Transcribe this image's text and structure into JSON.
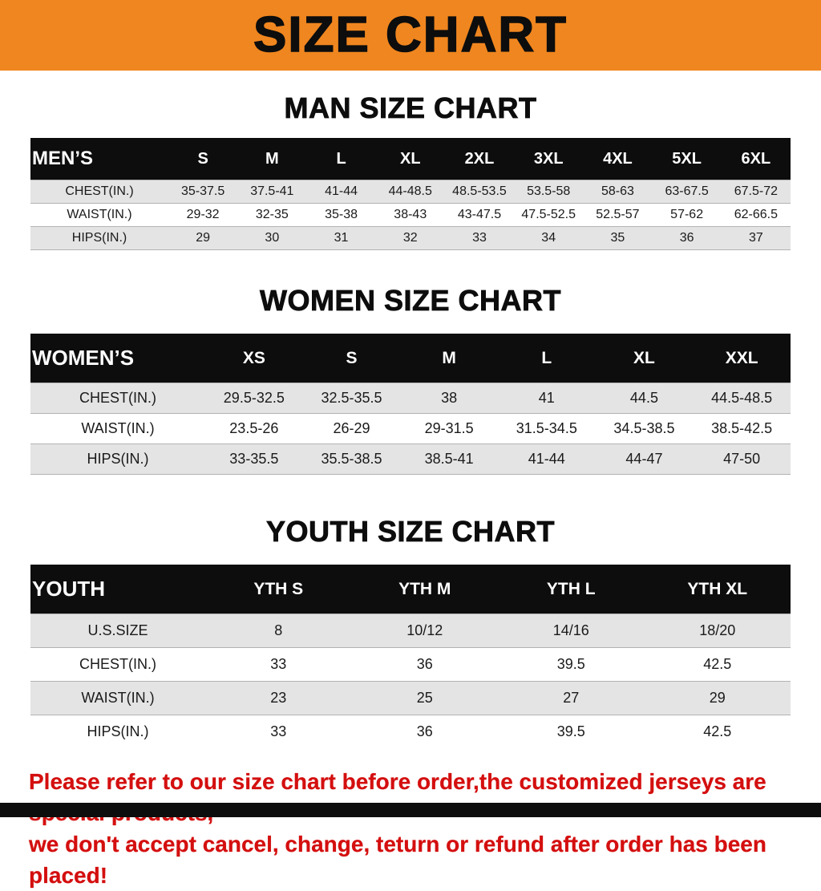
{
  "banner": {
    "title": "SIZE CHART",
    "bg_color": "#f0861f"
  },
  "colors": {
    "header_row_bg": "#0d0d0d",
    "stripe_row_bg": "#e4e4e4",
    "notice_text": "#d40f0f"
  },
  "sections": {
    "men": {
      "heading": "MAN SIZE CHART",
      "table": {
        "header": [
          "MEN’S",
          "S",
          "M",
          "L",
          "XL",
          "2XL",
          "3XL",
          "4XL",
          "5XL",
          "6XL"
        ],
        "rows": [
          [
            "CHEST(IN.)",
            "35-37.5",
            "37.5-41",
            "41-44",
            "44-48.5",
            "48.5-53.5",
            "53.5-58",
            "58-63",
            "63-67.5",
            "67.5-72"
          ],
          [
            "WAIST(IN.)",
            "29-32",
            "32-35",
            "35-38",
            "38-43",
            "43-47.5",
            "47.5-52.5",
            "52.5-57",
            "57-62",
            "62-66.5"
          ],
          [
            "HIPS(IN.)",
            "29",
            "30",
            "31",
            "32",
            "33",
            "34",
            "35",
            "36",
            "37"
          ]
        ]
      }
    },
    "women": {
      "heading": "WOMEN SIZE CHART",
      "table": {
        "header": [
          "WOMEN’S",
          "XS",
          "S",
          "M",
          "L",
          "XL",
          "XXL"
        ],
        "rows": [
          [
            "CHEST(IN.)",
            "29.5-32.5",
            "32.5-35.5",
            "38",
            "41",
            "44.5",
            "44.5-48.5"
          ],
          [
            "WAIST(IN.)",
            "23.5-26",
            "26-29",
            "29-31.5",
            "31.5-34.5",
            "34.5-38.5",
            "38.5-42.5"
          ],
          [
            "HIPS(IN.)",
            "33-35.5",
            "35.5-38.5",
            "38.5-41",
            "41-44",
            "44-47",
            "47-50"
          ]
        ]
      }
    },
    "youth": {
      "heading": "YOUTH SIZE CHART",
      "table": {
        "header": [
          "YOUTH",
          "YTH S",
          "YTH M",
          "YTH L",
          "YTH XL"
        ],
        "rows": [
          [
            "U.S.SIZE",
            "8",
            "10/12",
            "14/16",
            "18/20"
          ],
          [
            "CHEST(IN.)",
            "33",
            "36",
            "39.5",
            "42.5"
          ],
          [
            "WAIST(IN.)",
            "23",
            "25",
            "27",
            "29"
          ],
          [
            "HIPS(IN.)",
            "33",
            "36",
            "39.5",
            "42.5"
          ]
        ]
      }
    }
  },
  "notice": {
    "line1": "Please refer to our size chart before order,the customized jerseys are special products,",
    "line2": "we don't accept cancel, change, teturn or refund after order has been placed!"
  }
}
